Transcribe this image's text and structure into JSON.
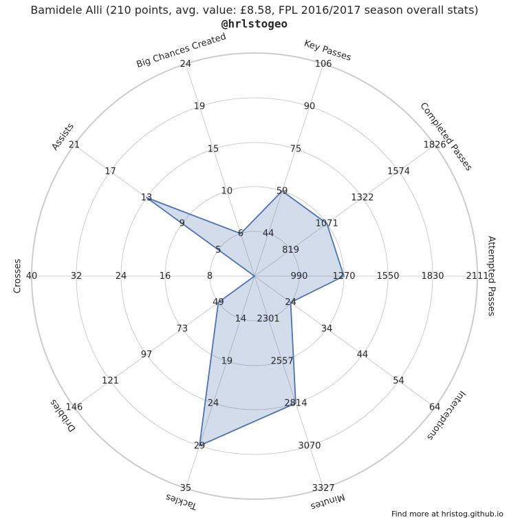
{
  "chart_data": {
    "type": "radar",
    "title": "Bamidele Alli (210 points, avg. value: £8.58, FPL 2016/2017 season overall stats)",
    "subtitle": "@hrlstogeo",
    "footer": "Find more at hristog.github.io",
    "categories": [
      "Attempted Passes",
      "Completed Passes",
      "Key Passes",
      "Big Chances Created",
      "Assists",
      "Crosses",
      "Dribbles",
      "Tackles",
      "Minutes",
      "Interceptions"
    ],
    "tick_labels": [
      [
        "990",
        "1270",
        "1550",
        "1830",
        "2111"
      ],
      [
        "819",
        "1071",
        "1322",
        "1574",
        "1826"
      ],
      [
        "44",
        "59",
        "75",
        "90",
        "106"
      ],
      [
        "6",
        "10",
        "15",
        "19",
        "24"
      ],
      [
        "5",
        "9",
        "13",
        "17",
        "21"
      ],
      [
        "8",
        "16",
        "24",
        "32",
        "40"
      ],
      [
        "49",
        "73",
        "97",
        "121",
        "146"
      ],
      [
        "14",
        "19",
        "24",
        "29",
        "35"
      ],
      [
        "2301",
        "2557",
        "2814",
        "3070",
        "3327"
      ],
      [
        "24",
        "34",
        "44",
        "54",
        "64"
      ]
    ],
    "values": [
      1270,
      1071,
      59,
      6,
      13,
      0,
      49,
      29,
      2814,
      24
    ],
    "style": {
      "line_color": "#4c72b0",
      "fill_color": "#4c72b0",
      "grid_color": "#cccccc"
    }
  }
}
